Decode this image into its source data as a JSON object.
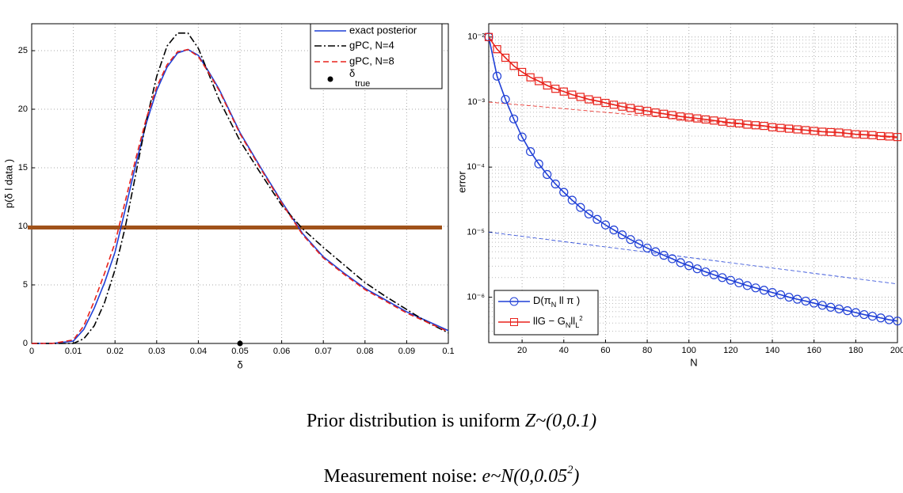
{
  "chart_data": [
    {
      "type": "line",
      "xlabel": "δ",
      "ylabel": "p(δ l data )",
      "x": [
        0,
        0.005,
        0.01,
        0.0125,
        0.015,
        0.0175,
        0.02,
        0.0225,
        0.025,
        0.0275,
        0.03,
        0.0325,
        0.035,
        0.0375,
        0.04,
        0.0425,
        0.045,
        0.05,
        0.055,
        0.06,
        0.065,
        0.07,
        0.075,
        0.08,
        0.085,
        0.09,
        0.095,
        0.1
      ],
      "xlim": [
        0,
        0.1
      ],
      "ylim": [
        0,
        27.3
      ],
      "xticks": [
        0,
        0.01,
        0.02,
        0.03,
        0.04,
        0.05,
        0.06,
        0.07,
        0.08,
        0.09,
        0.1
      ],
      "yticks": [
        0,
        5,
        10,
        15,
        20,
        25
      ],
      "grid": true,
      "legend": "upper right",
      "series": [
        {
          "name": "exact posterior",
          "color": "#1f3fd6",
          "style": "solid",
          "values": [
            0,
            0,
            0.2,
            1.2,
            3.0,
            5.2,
            7.8,
            11.5,
            15.3,
            18.8,
            21.6,
            23.6,
            24.8,
            25.1,
            24.6,
            23.2,
            21.7,
            18.0,
            15.0,
            12.1,
            9.4,
            7.4,
            6.0,
            4.7,
            3.7,
            2.7,
            1.9,
            1.1
          ]
        },
        {
          "name": "gPC, N=4",
          "color": "#000000",
          "style": "dashdot",
          "values": [
            0,
            0,
            0,
            0.4,
            1.5,
            3.5,
            6.3,
            10.0,
            14.5,
            19.0,
            22.8,
            25.4,
            26.5,
            26.5,
            25.2,
            23.0,
            20.8,
            17.3,
            14.5,
            11.8,
            9.8,
            8.2,
            6.7,
            5.2,
            4.0,
            2.9,
            1.8,
            0.9
          ]
        },
        {
          "name": "gPC, N=8",
          "color": "#e8221b",
          "style": "dashed",
          "values": [
            0,
            0,
            0.3,
            1.5,
            3.6,
            6.0,
            8.6,
            12.2,
            15.8,
            19.2,
            21.9,
            23.8,
            24.9,
            25.1,
            24.5,
            23.1,
            21.6,
            17.9,
            14.9,
            12.0,
            9.3,
            7.3,
            5.9,
            4.6,
            3.6,
            2.6,
            1.8,
            1.0
          ]
        }
      ],
      "points": [
        {
          "name": "δ",
          "name_subscript": "true",
          "color": "#000000",
          "x": 0.05,
          "y": 0
        }
      ],
      "reference_line": {
        "value": 9.9,
        "color": "#a0521a"
      }
    },
    {
      "type": "line",
      "log_y": true,
      "xlabel": "N",
      "ylabel": "error",
      "x": [
        4,
        8,
        12,
        16,
        20,
        24,
        28,
        32,
        36,
        40,
        44,
        48,
        52,
        56,
        60,
        64,
        68,
        72,
        76,
        80,
        84,
        88,
        92,
        96,
        100,
        104,
        108,
        112,
        116,
        120,
        124,
        128,
        132,
        136,
        140,
        144,
        148,
        152,
        156,
        160,
        164,
        168,
        172,
        176,
        180,
        184,
        188,
        192,
        196,
        200
      ],
      "xlim": [
        4,
        200
      ],
      "ylim": [
        2e-07,
        0.016
      ],
      "xticks": [
        20,
        40,
        60,
        80,
        100,
        120,
        140,
        160,
        180,
        200
      ],
      "yticks": [
        {
          "value": 1e-06,
          "label": "10⁻⁶"
        },
        {
          "value": 1e-05,
          "label": "10⁻⁵"
        },
        {
          "value": 0.0001,
          "label": "10⁻⁴"
        },
        {
          "value": 0.001,
          "label": "10⁻³"
        },
        {
          "value": 0.01,
          "label": "10⁻²"
        }
      ],
      "grid": true,
      "minor_grid": true,
      "legend": "lower left",
      "series": [
        {
          "name": [
            {
              "text": "D(π"
            },
            {
              "text": "N",
              "sub": true
            },
            {
              "text": " ll π )"
            }
          ],
          "color": "#1f3fd6",
          "marker": "circle",
          "values": [
            0.01,
            0.0025,
            0.0011,
            0.00055,
            0.00029,
            0.000173,
            0.000112,
            7.7e-05,
            5.5e-05,
            4.1e-05,
            3.1e-05,
            2.4e-05,
            1.9e-05,
            1.57e-05,
            1.29e-05,
            1.08e-05,
            9.1e-06,
            7.7e-06,
            6.6e-06,
            5.7e-06,
            5e-06,
            4.4e-06,
            3.9e-06,
            3.4e-06,
            3.05e-06,
            2.73e-06,
            2.45e-06,
            2.21e-06,
            2e-06,
            1.82e-06,
            1.66e-06,
            1.51e-06,
            1.39e-06,
            1.28e-06,
            1.18e-06,
            1.09e-06,
            1e-06,
            9.3e-07,
            8.7e-07,
            8.1e-07,
            7.5e-07,
            7e-07,
            6.6e-07,
            6.2e-07,
            5.8e-07,
            5.4e-07,
            5.1e-07,
            4.8e-07,
            4.5e-07,
            4.3e-07
          ]
        },
        {
          "name": [
            {
              "text": "llG − G"
            },
            {
              "text": "N",
              "sub": true
            },
            {
              "text": "ll"
            },
            {
              "text": "L",
              "sub": true
            },
            {
              "text": "2",
              "sup": true
            }
          ],
          "color": "#e8221b",
          "marker": "square",
          "values": [
            0.01,
            0.0065,
            0.0048,
            0.0036,
            0.0029,
            0.0024,
            0.0021,
            0.0018,
            0.0016,
            0.00145,
            0.0013,
            0.0012,
            0.0011,
            0.00104,
            0.00097,
            0.00091,
            0.00085,
            0.00081,
            0.00076,
            0.00073,
            0.00069,
            0.00066,
            0.00063,
            0.0006,
            0.00058,
            0.00056,
            0.00054,
            0.00052,
            0.0005,
            0.00048,
            0.00047,
            0.00045,
            0.00044,
            0.00043,
            0.00041,
            0.0004,
            0.00039,
            0.00038,
            0.00037,
            0.00036,
            0.00035,
            0.000345,
            0.00034,
            0.00033,
            0.00032,
            0.000315,
            0.00031,
            0.0003,
            0.000296,
            0.00029
          ]
        }
      ],
      "guides": [
        {
          "x": [
            4,
            200
          ],
          "values": [
            1e-05,
            1.6e-06
          ],
          "color": "#1f3fd6"
        },
        {
          "x": [
            4,
            200
          ],
          "values": [
            0.001,
            0.00028
          ],
          "color": "#e8221b"
        }
      ]
    }
  ],
  "captions": [
    [
      {
        "text": "Prior distribution is uniform "
      },
      {
        "text": "Z~(0,0.1)",
        "italic": true
      }
    ],
    [
      {
        "text": "Measurement noise: "
      },
      {
        "text": "e~N(0,0.05",
        "italic": true
      },
      {
        "text": "2",
        "italic": true,
        "sup": true
      },
      {
        "text": ")",
        "italic": true
      }
    ]
  ]
}
